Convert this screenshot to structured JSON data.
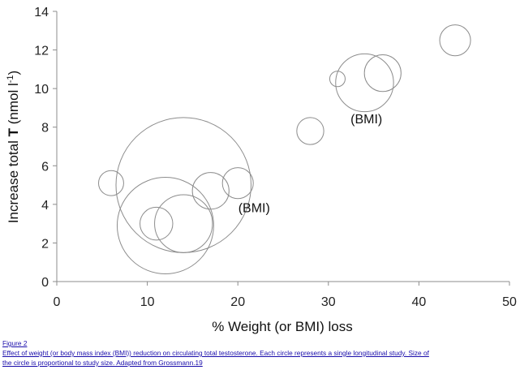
{
  "chart_data": {
    "type": "scatter",
    "xlabel": "% Weight (or BMI) loss",
    "ylabel_prefix": "Increase total ",
    "ylabel_bold": "T",
    "ylabel_suffix": " (nmol l",
    "ylabel_sup": "-1",
    "ylabel_end": ")",
    "xlim": [
      0,
      50
    ],
    "ylim": [
      0,
      14
    ],
    "xticks": [
      0,
      10,
      20,
      30,
      40,
      50
    ],
    "yticks": [
      0,
      2,
      4,
      6,
      8,
      10,
      12,
      14
    ],
    "grid": false,
    "bubble_color": "#8c8c8c",
    "points": [
      {
        "x": 6,
        "y": 5.1,
        "size": 1.3
      },
      {
        "x": 12,
        "y": 2.9,
        "size": 5.0
      },
      {
        "x": 14,
        "y": 5.0,
        "size": 7.0
      },
      {
        "x": 11,
        "y": 3.0,
        "size": 1.7
      },
      {
        "x": 14,
        "y": 3.0,
        "size": 3.0
      },
      {
        "x": 17,
        "y": 4.7,
        "size": 1.9
      },
      {
        "x": 20,
        "y": 5.1,
        "size": 1.6
      },
      {
        "x": 28,
        "y": 7.8,
        "size": 1.4
      },
      {
        "x": 31,
        "y": 10.5,
        "size": 0.8
      },
      {
        "x": 34,
        "y": 10.3,
        "size": 3.0
      },
      {
        "x": 36,
        "y": 10.8,
        "size": 1.9
      },
      {
        "x": 44,
        "y": 12.5,
        "size": 1.6
      }
    ],
    "annotations": [
      {
        "text": "(BMI)",
        "x": 21.8,
        "y": 3.6
      },
      {
        "text": "(BMI)",
        "x": 34.2,
        "y": 8.2
      }
    ]
  },
  "caption": {
    "figure_label": "Figure 2",
    "line1": "Effect of weight (or body mass index (BMI)) reduction on circulating total testosterone. Each circle represents a single longitudinal study. Size of",
    "line2": "the circle is proportional to study size. Adapted from Grossmann.19"
  }
}
